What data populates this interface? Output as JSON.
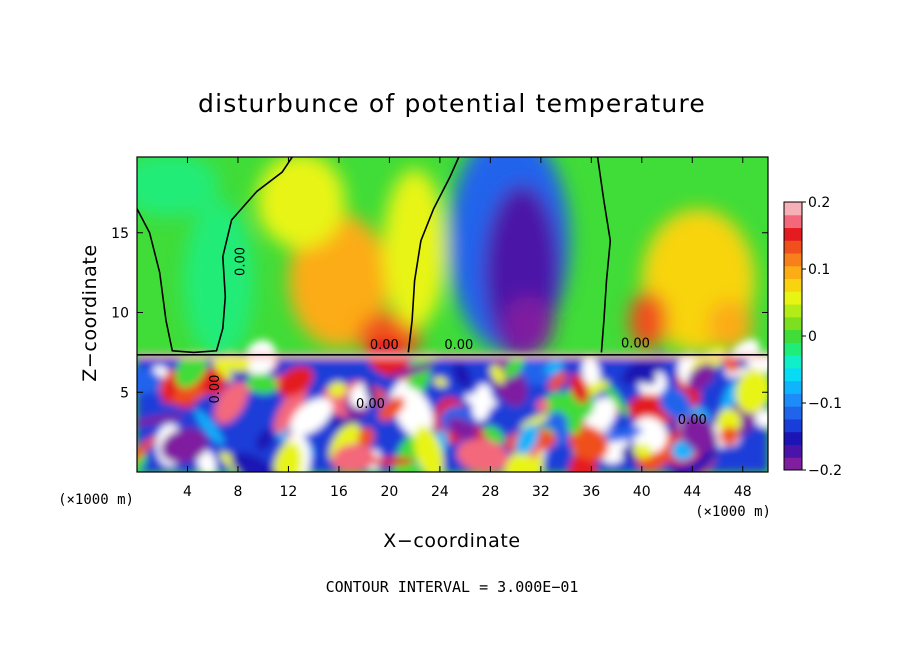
{
  "chart_data": {
    "type": "heatmap",
    "title": "disturbunce of potential temperature",
    "xlabel": "X−coordinate",
    "ylabel": "Z−coordinate",
    "x_unit": "(×1000 m)",
    "y_unit": "(×1000 m)",
    "xlim": [
      0,
      50
    ],
    "ylim": [
      0,
      19.75
    ],
    "xticks": [
      4,
      8,
      12,
      16,
      20,
      24,
      28,
      32,
      36,
      40,
      44,
      48
    ],
    "yticks": [
      5,
      10,
      15
    ],
    "footer": "CONTOUR INTERVAL = 3.000E−01",
    "colorbar": {
      "range": [
        -0.2,
        0.2
      ],
      "tick_values": [
        -0.2,
        -0.1,
        0,
        0.1,
        0.2
      ],
      "tick_labels": [
        "−0.2",
        "−0.1",
        "0",
        "0.1",
        "0.2"
      ],
      "colors": [
        "#7f1fa0",
        "#4b14a8",
        "#1c14b4",
        "#1a3cd8",
        "#2064ec",
        "#1c8cf8",
        "#10b4fc",
        "#08dcf4",
        "#10f0c8",
        "#20ec78",
        "#40dc38",
        "#7ce020",
        "#b4ec18",
        "#e8f414",
        "#f8d410",
        "#fcac14",
        "#f8801c",
        "#f0501c",
        "#e41c20",
        "#f4687c",
        "#f8b0b8"
      ]
    },
    "contour_labels": [
      "0.00",
      "0.00",
      "0.00",
      "0.00",
      "0.00",
      "0.00",
      "0.00"
    ],
    "regions": [
      {
        "cx": 16,
        "cy": 12,
        "rx": 4.0,
        "ry": 4.2,
        "value": 0.09
      },
      {
        "cx": 20,
        "cy": 8.5,
        "rx": 2.5,
        "ry": 1.5,
        "value": 0.13
      },
      {
        "cx": 13,
        "cy": 17,
        "rx": 3.5,
        "ry": 3.0,
        "value": 0.05
      },
      {
        "cx": 22,
        "cy": 14,
        "rx": 2.5,
        "ry": 5.0,
        "value": 0.06
      },
      {
        "cx": 29.5,
        "cy": 14.5,
        "rx": 4.8,
        "ry": 7.0,
        "value": -0.12
      },
      {
        "cx": 30.5,
        "cy": 12.5,
        "rx": 3.0,
        "ry": 5.5,
        "value": -0.17
      },
      {
        "cx": 31,
        "cy": 9.2,
        "rx": 2.0,
        "ry": 1.8,
        "value": -0.2
      },
      {
        "cx": 44.5,
        "cy": 12,
        "rx": 4.5,
        "ry": 4.5,
        "value": 0.08
      },
      {
        "cx": 40.5,
        "cy": 9.5,
        "rx": 1.5,
        "ry": 1.8,
        "value": 0.14
      },
      {
        "cx": 47,
        "cy": 9.2,
        "rx": 1.8,
        "ry": 1.6,
        "value": 0.1
      },
      {
        "cx": 6.5,
        "cy": 12,
        "rx": 2.8,
        "ry": 5.0,
        "value": -0.02
      },
      {
        "cx": 2.5,
        "cy": 18,
        "rx": 4.0,
        "ry": 2.0,
        "value": -0.01
      }
    ]
  }
}
